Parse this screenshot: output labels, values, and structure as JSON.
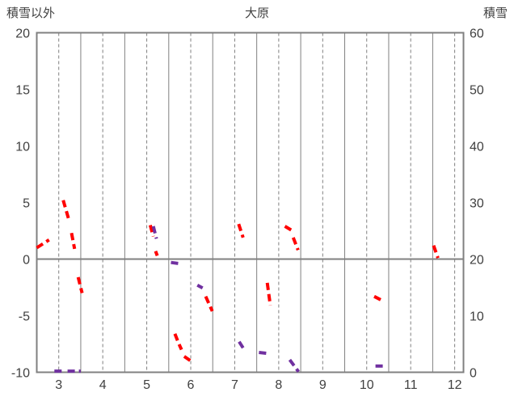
{
  "chart_data": {
    "type": "line",
    "title": "大原",
    "left_axis": {
      "label": "積雪以外",
      "min": -10,
      "max": 20,
      "ticks": [
        20,
        15,
        10,
        5,
        0,
        -5,
        -10
      ]
    },
    "right_axis": {
      "label": "積雪",
      "min": 0,
      "max": 60,
      "ticks": [
        60,
        50,
        40,
        30,
        20,
        10,
        0
      ]
    },
    "x_axis": {
      "min": 2.5,
      "max": 12.2,
      "ticks": [
        3,
        4,
        5,
        6,
        7,
        8,
        9,
        10,
        11,
        12
      ]
    },
    "grid": {
      "vertical_dashed_at_month_labels": true,
      "vertical_solid_at_half_months": true,
      "horizontal_zero_line_at_left_value": 0
    },
    "grid_color": "#808080",
    "text_color": "#404040",
    "background": "#FFFFFF",
    "series": [
      {
        "name": "積雪以外",
        "axis": "left",
        "color": "#FF0000",
        "line_style": "dashed",
        "line_width": 4,
        "segments": [
          [
            [
              2.5,
              1.0
            ],
            [
              2.78,
              1.7
            ]
          ],
          [
            [
              3.1,
              5.2
            ],
            [
              3.22,
              3.6
            ]
          ],
          [
            [
              3.29,
              2.3
            ],
            [
              3.36,
              0.9
            ]
          ],
          [
            [
              3.44,
              -1.6
            ],
            [
              3.53,
              -3.0
            ]
          ],
          [
            [
              5.08,
              3.0
            ],
            [
              5.15,
              2.0
            ]
          ],
          [
            [
              5.2,
              0.7
            ],
            [
              5.24,
              0.3
            ]
          ],
          [
            [
              5.64,
              -6.6
            ],
            [
              5.72,
              -7.4
            ],
            [
              5.79,
              -8.0
            ]
          ],
          [
            [
              5.85,
              -8.6
            ],
            [
              6.0,
              -9.0
            ]
          ],
          [
            [
              6.34,
              -3.3
            ],
            [
              6.49,
              -4.6
            ]
          ],
          [
            [
              7.09,
              3.1
            ],
            [
              7.19,
              1.9
            ]
          ],
          [
            [
              7.74,
              -2.1
            ],
            [
              7.81,
              -4.1
            ]
          ],
          [
            [
              8.14,
              2.9
            ],
            [
              8.29,
              2.55
            ]
          ],
          [
            [
              8.33,
              1.9
            ],
            [
              8.44,
              0.8
            ]
          ],
          [
            [
              10.17,
              -3.3
            ],
            [
              10.32,
              -3.6
            ]
          ],
          [
            [
              11.52,
              1.2
            ],
            [
              11.62,
              0.1
            ]
          ]
        ]
      },
      {
        "name": "積雪",
        "axis": "right",
        "color": "#7030A0",
        "line_style": "dashed",
        "line_width": 4,
        "segments": [
          [
            [
              2.9,
              0.2
            ],
            [
              3.1,
              0.2
            ]
          ],
          [
            [
              3.2,
              0.2
            ],
            [
              3.5,
              0.2
            ]
          ],
          [
            [
              5.15,
              25.8
            ],
            [
              5.22,
              23.6
            ]
          ],
          [
            [
              5.55,
              19.4
            ],
            [
              5.75,
              19.2
            ]
          ],
          [
            [
              6.15,
              15.4
            ],
            [
              6.27,
              14.9
            ]
          ],
          [
            [
              7.1,
              5.4
            ],
            [
              7.2,
              4.2
            ]
          ],
          [
            [
              7.55,
              3.5
            ],
            [
              7.78,
              3.3
            ]
          ],
          [
            [
              8.25,
              2.2
            ],
            [
              8.45,
              0.1
            ]
          ],
          [
            [
              10.2,
              1.1
            ],
            [
              10.37,
              1.1
            ]
          ]
        ]
      }
    ]
  }
}
